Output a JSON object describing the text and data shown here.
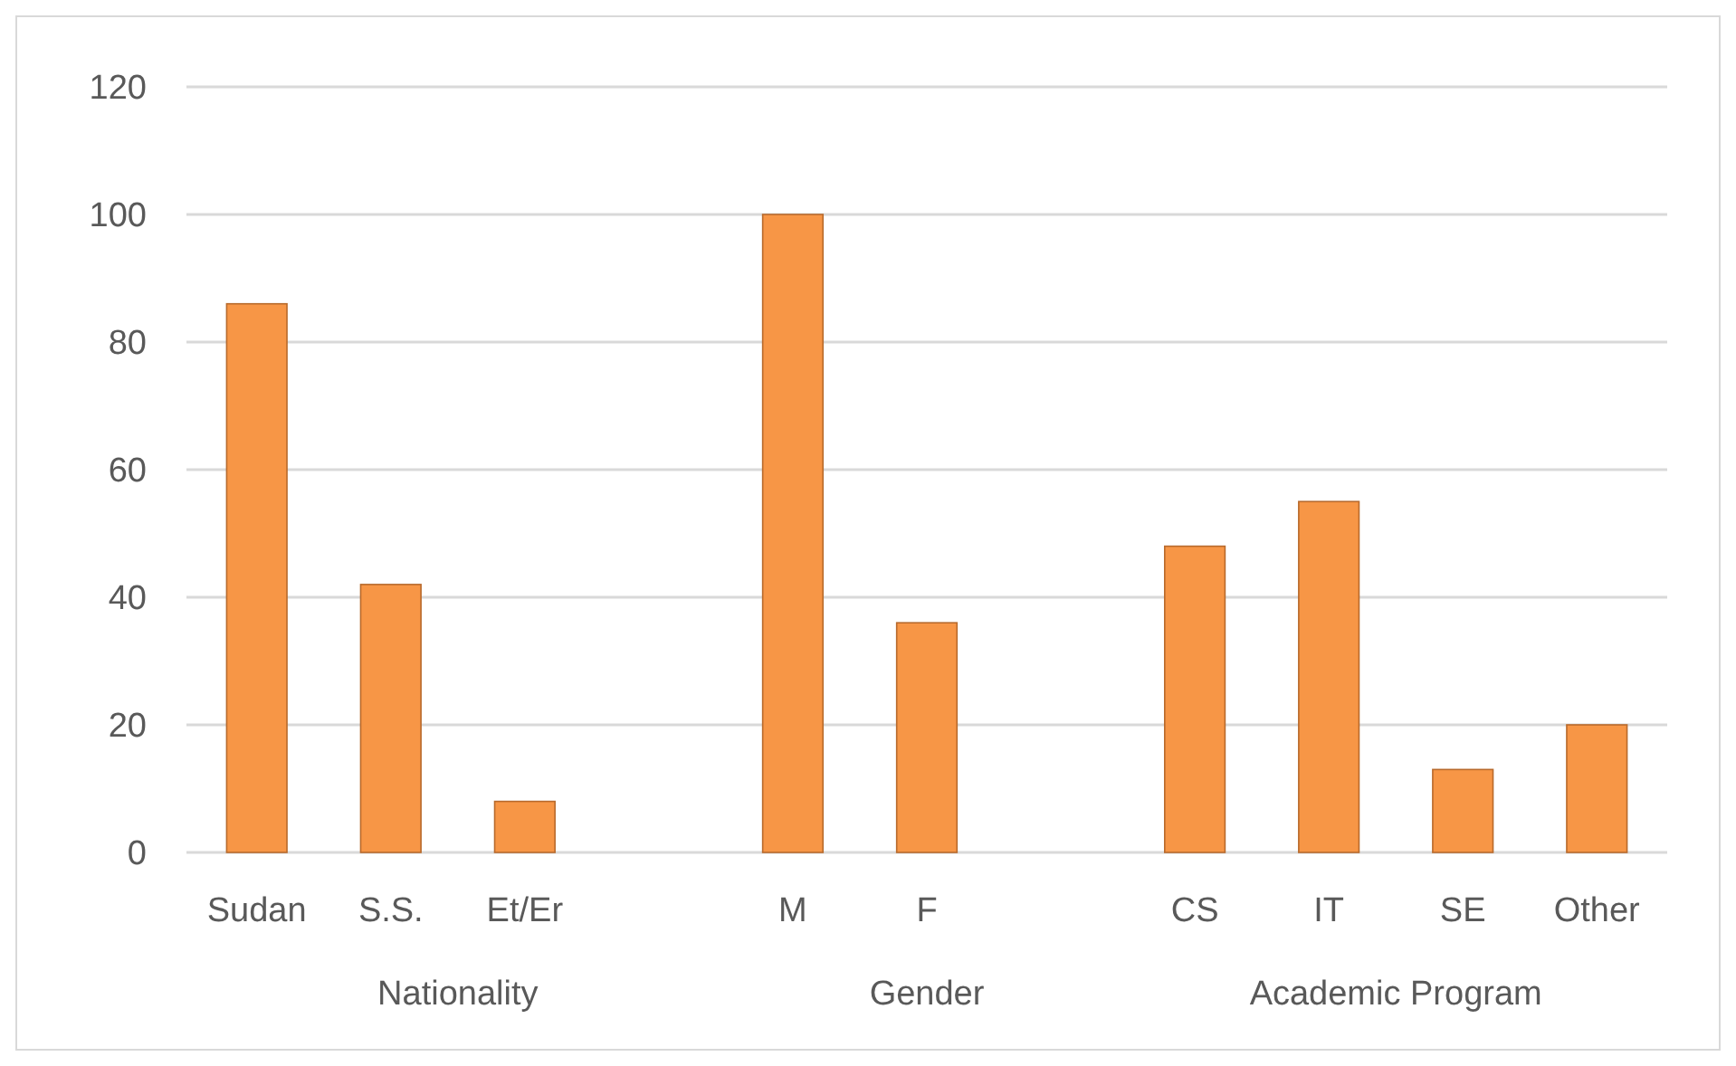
{
  "chart_data": {
    "type": "bar",
    "categories": [
      "Sudan",
      "S.S.",
      "Et/Er",
      null,
      "M",
      "F",
      null,
      "CS",
      "IT",
      "SE",
      "Other"
    ],
    "values": [
      86,
      42,
      8,
      null,
      100,
      36,
      null,
      48,
      55,
      13,
      20
    ],
    "color": "#f79646",
    "ylim": [
      0,
      120
    ],
    "yticks": [
      0,
      20,
      40,
      60,
      80,
      100,
      120
    ],
    "grid": "y",
    "annotations": [
      "Nationality",
      "Gender",
      "Academic Program"
    ]
  }
}
